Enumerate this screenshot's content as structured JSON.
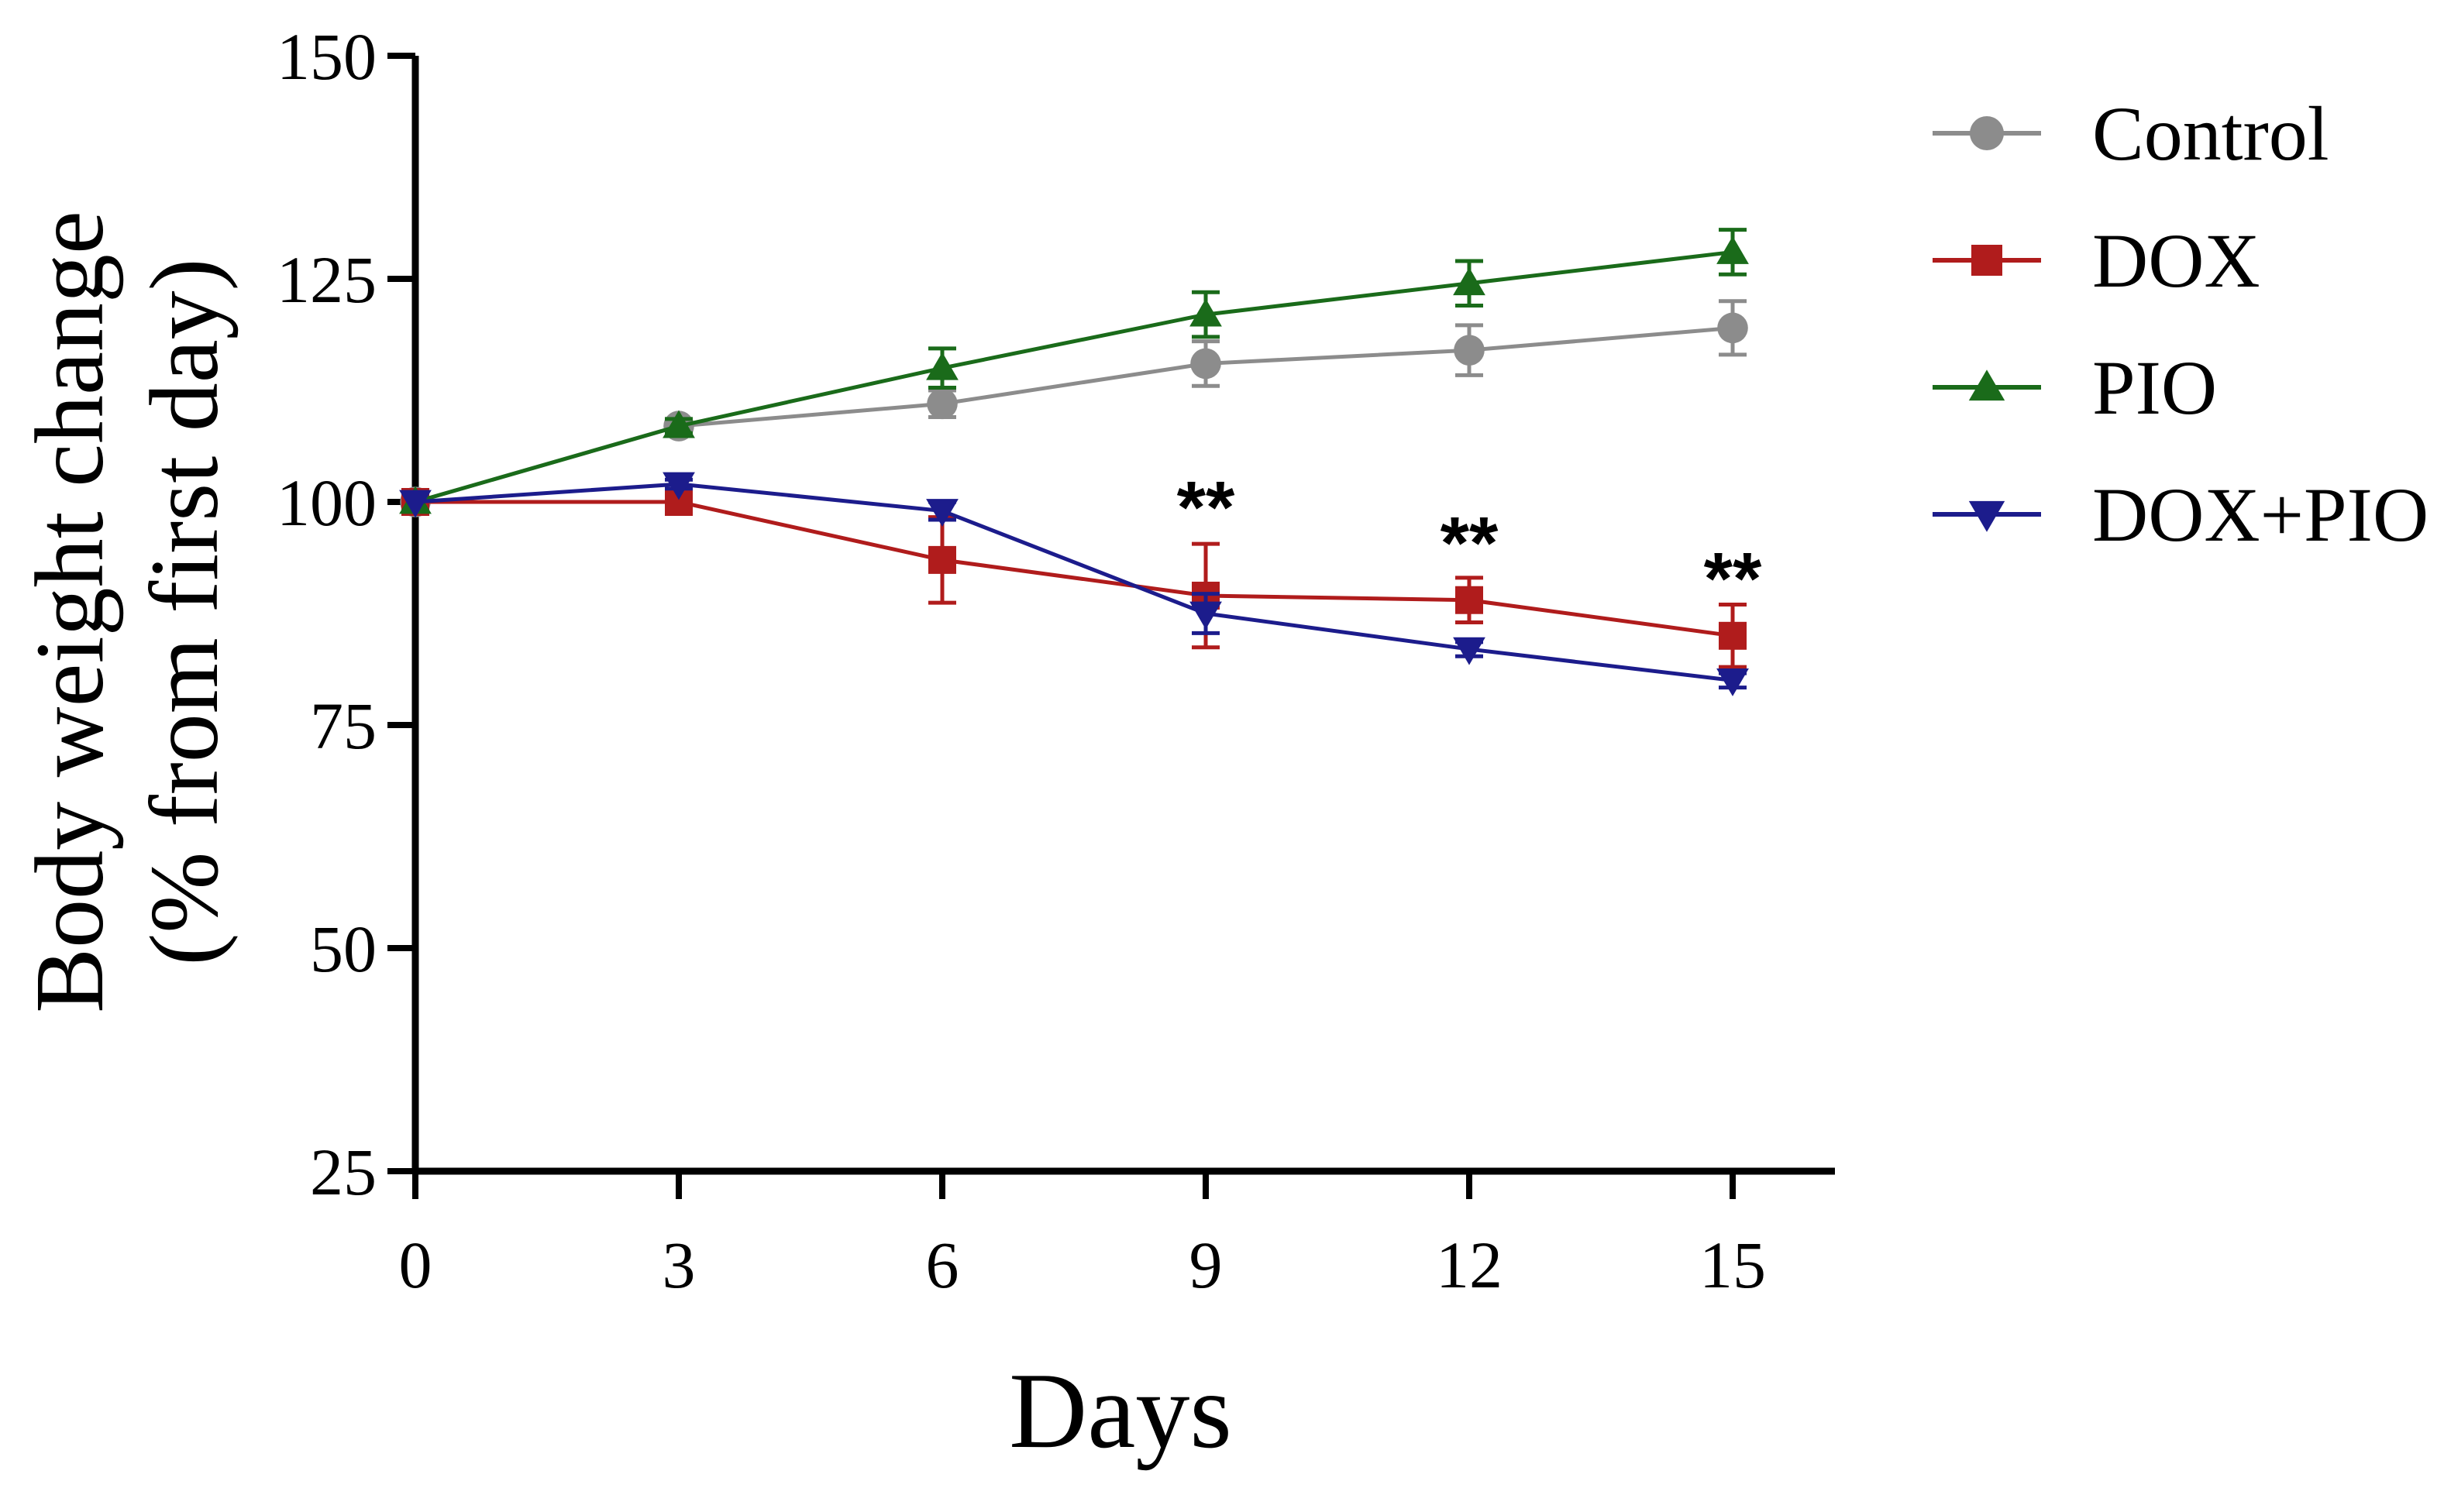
{
  "chart_data": {
    "type": "line",
    "title": "",
    "xlabel": "Days",
    "ylabel_line1": "Body weight change",
    "ylabel_line2": "(% from first day)",
    "x": [
      0,
      3,
      6,
      9,
      12,
      15
    ],
    "xticks": [
      "0",
      "3",
      "6",
      "9",
      "12",
      "15"
    ],
    "yticks": [
      "25",
      "50",
      "75",
      "100",
      "125",
      "150"
    ],
    "xlim": [
      0,
      16
    ],
    "ylim": [
      25,
      150
    ],
    "legend_position": "right",
    "series": [
      {
        "name": "Control",
        "color": "#8c8c8c",
        "marker": "circle",
        "values": [
          100,
          108.5,
          111,
          115.5,
          117,
          119.5
        ],
        "errors": [
          0,
          0.8,
          1.5,
          2.5,
          2.8,
          3
        ]
      },
      {
        "name": "DOX",
        "color": "#b01c1c",
        "marker": "square",
        "values": [
          100,
          100,
          93.5,
          89.5,
          89,
          85
        ],
        "errors": [
          0,
          0.5,
          4.8,
          5.8,
          2.5,
          3.5
        ]
      },
      {
        "name": "PIO",
        "color": "#1a6b1a",
        "marker": "triangle-up",
        "values": [
          100,
          108.5,
          115,
          121,
          124.5,
          128
        ],
        "errors": [
          0,
          0.8,
          2.2,
          2.5,
          2.5,
          2.5
        ]
      },
      {
        "name": "DOX+PIO",
        "color": "#1c1c8c",
        "marker": "triangle-down",
        "values": [
          100,
          102,
          99,
          87.5,
          83.5,
          80
        ],
        "errors": [
          0,
          0.5,
          1,
          2.2,
          0.8,
          0.8
        ]
      }
    ],
    "annotations": [
      {
        "text": "**",
        "x": 9,
        "y": 99.5
      },
      {
        "text": "**",
        "x": 12,
        "y": 95.5
      },
      {
        "text": "**",
        "x": 15,
        "y": 91.5
      }
    ]
  }
}
